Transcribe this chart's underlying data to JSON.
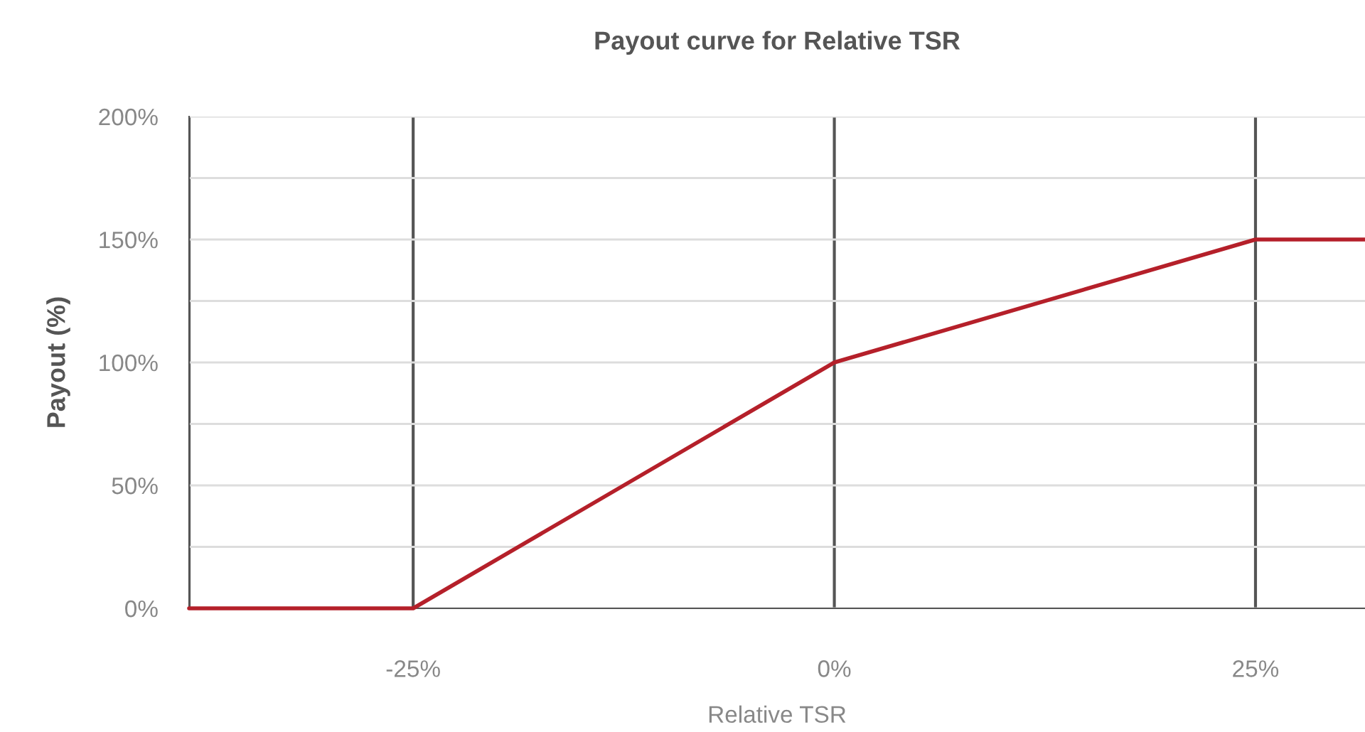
{
  "chart_data": {
    "type": "line",
    "title": "Payout curve for Relative TSR",
    "xlabel": "Relative TSR",
    "ylabel": "Payout (%)",
    "x": [
      -38.3,
      -25,
      0,
      25,
      31.5
    ],
    "series": [
      {
        "color": "#b5202a",
        "values": [
          0,
          0,
          100,
          150,
          150
        ]
      }
    ],
    "xlim": [
      -38.3,
      31.5
    ],
    "ylim": [
      0,
      200
    ],
    "xticks": [
      {
        "value": -38.3,
        "label": null
      },
      {
        "value": -25,
        "label": "-25%"
      },
      {
        "value": 0,
        "label": "0%"
      },
      {
        "value": 25,
        "label": "25%"
      }
    ],
    "yticks": [
      {
        "value": 0,
        "label": "0%"
      },
      {
        "value": 25,
        "label": null
      },
      {
        "value": 50,
        "label": "50%"
      },
      {
        "value": 75,
        "label": null
      },
      {
        "value": 100,
        "label": "100%"
      },
      {
        "value": 125,
        "label": null
      },
      {
        "value": 150,
        "label": "150%"
      },
      {
        "value": 175,
        "label": null
      },
      {
        "value": 200,
        "label": "200%"
      }
    ],
    "grid": true,
    "marker": "none",
    "line_style": "solid"
  }
}
